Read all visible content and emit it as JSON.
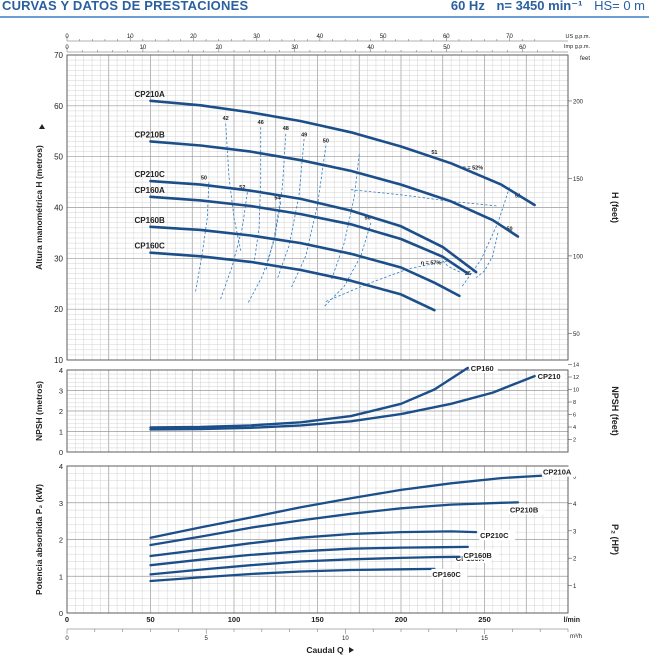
{
  "header": {
    "title": "CURVAS Y DATOS DE PRESTACIONES",
    "freq": "60 Hz",
    "speed": "n= 3450 min⁻¹",
    "hs": "HS= 0 m"
  },
  "colors": {
    "curve": "#1c4f8a",
    "label_blue": "#2a5fa0",
    "eff": "#2f7dc4",
    "grid_minor": "#c8c8c8",
    "grid_major": "#9a9a9a",
    "text": "#222222"
  },
  "flow_scales": {
    "us_gpm": {
      "label": "US g.p.m.",
      "ticks": [
        0,
        10,
        20,
        30,
        40,
        50,
        60,
        70
      ]
    },
    "imp_gpm": {
      "label": "Imp g.p.m.",
      "ticks": [
        0,
        10,
        20,
        30,
        40,
        50,
        60
      ]
    },
    "lmin": {
      "label": "l/min",
      "ticks": [
        0,
        50,
        100,
        150,
        200,
        250
      ]
    },
    "m3h": {
      "label": "m³/h",
      "ticks": [
        0,
        5,
        10,
        15
      ]
    },
    "xlabel": "Caudal Q"
  },
  "chart_data": [
    {
      "type": "line",
      "id": "head",
      "ylabel": "Altura manométrica H (metros)",
      "ylabel_right": "H (feet)",
      "right_unit": "feet",
      "xlim": [
        0,
        300
      ],
      "ylim": [
        10,
        70
      ],
      "yticks": [
        10,
        20,
        30,
        40,
        50,
        60,
        70
      ],
      "right_ticks": [
        50,
        100,
        150,
        200
      ],
      "series": [
        {
          "name": "CP210A",
          "x": [
            50,
            80,
            110,
            140,
            170,
            200,
            230,
            260,
            280
          ],
          "y": [
            61,
            60.1,
            58.7,
            57,
            54.8,
            52,
            48.7,
            44.5,
            40.5
          ]
        },
        {
          "name": "CP210B",
          "x": [
            50,
            80,
            110,
            140,
            170,
            200,
            230,
            255,
            270
          ],
          "y": [
            53,
            52.2,
            51,
            49.3,
            47.2,
            44.5,
            41.2,
            37.5,
            34.3
          ]
        },
        {
          "name": "CP210C",
          "x": [
            50,
            80,
            110,
            140,
            170,
            200,
            225,
            245
          ],
          "y": [
            45.2,
            44.5,
            43.3,
            41.7,
            39.4,
            36.3,
            32.2,
            27.3
          ]
        },
        {
          "name": "CP160A",
          "x": [
            50,
            80,
            110,
            140,
            170,
            200,
            225,
            240
          ],
          "y": [
            42.1,
            41.4,
            40.3,
            38.7,
            36.7,
            33.8,
            30.3,
            27
          ]
        },
        {
          "name": "CP160B",
          "x": [
            50,
            80,
            110,
            140,
            170,
            200,
            220,
            235
          ],
          "y": [
            36.2,
            35.6,
            34.5,
            33,
            30.9,
            28.2,
            25.2,
            22.6
          ]
        },
        {
          "name": "CP160C",
          "x": [
            50,
            80,
            110,
            140,
            170,
            200,
            220
          ],
          "y": [
            31.1,
            30.4,
            29.3,
            27.7,
            25.6,
            22.9,
            19.8
          ]
        }
      ],
      "efficiency": {
        "labels": [
          "42",
          "46",
          "48",
          "49",
          "50",
          "51",
          "η = 52%",
          "51",
          "50",
          "50",
          "52",
          "54",
          "56",
          "η = 57%",
          "56"
        ],
        "curves": [
          {
            "name": "42",
            "x": [
              95,
              97,
              100,
              104
            ],
            "y": [
              56.5,
              46,
              38,
              31.5
            ]
          },
          {
            "name": "46",
            "x": [
              116,
              116,
              115,
              112
            ],
            "y": [
              55.8,
              45,
              36,
              29
            ]
          },
          {
            "name": "48",
            "x": [
              131,
              129,
              124,
              119
            ],
            "y": [
              54.5,
              44,
              34,
              27.5
            ]
          },
          {
            "name": "49",
            "x": [
              142,
              139,
              133,
              126
            ],
            "y": [
              53.5,
              42.5,
              32.5,
              26
            ]
          },
          {
            "name": "50",
            "x": [
              155,
              150,
              143,
              134
            ],
            "y": [
              52.2,
              40.5,
              30.5,
              24
            ]
          },
          {
            "name": "51",
            "x": [
              265,
              258,
              248,
              236
            ],
            "y": [
              44,
              37,
              29.8,
              24.2
            ]
          },
          {
            "name": "51",
            "x": [
              175,
              172,
              166,
              158
            ],
            "y": [
              50.5,
              42,
              33,
              25.5
            ]
          },
          {
            "name": "50",
            "x": [
              258,
              255,
              250,
              245
            ],
            "y": [
              35,
              30.5,
              27.5,
              26.2
            ]
          },
          {
            "name": "50",
            "x": [
              85,
              84,
              81,
              77
            ],
            "y": [
              45,
              38,
              31,
              23.5
            ]
          },
          {
            "name": "52",
            "x": [
              108,
              105,
              99,
              92
            ],
            "y": [
              43,
              36,
              28.5,
              22
            ]
          },
          {
            "name": "54",
            "x": [
              128,
              124,
              117,
              108
            ],
            "y": [
              41,
              33.5,
              26.5,
              21
            ]
          },
          {
            "name": "56",
            "x": [
              182,
              176,
              166,
              154
            ],
            "y": [
              37,
              30.5,
              24.5,
              20.5
            ]
          },
          {
            "name": "57",
            "x": [
              155,
              180,
              205,
              228
            ],
            "y": [
              21.5,
              25,
              28,
              29.5
            ]
          },
          {
            "name": "52",
            "x": [
              170,
              200,
              230,
              258
            ],
            "y": [
              43.5,
              42.5,
              41.2,
              40.3
            ]
          },
          {
            "name": "56",
            "x": [
              225,
              228,
              232,
              236
            ],
            "y": [
              29.5,
              28.5,
              27.8,
              27.2
            ]
          }
        ]
      }
    },
    {
      "type": "line",
      "id": "npsh",
      "ylabel": "NPSH (metros)",
      "ylabel_right": "NPSH (feet)",
      "xlim": [
        0,
        300
      ],
      "ylim": [
        0,
        4
      ],
      "yticks": [
        0,
        1,
        2,
        3,
        4
      ],
      "right_ticks": [
        2,
        4,
        6,
        8,
        10,
        12,
        14
      ],
      "series": [
        {
          "name": "CP160",
          "x": [
            50,
            80,
            110,
            140,
            170,
            200,
            220,
            240
          ],
          "y": [
            1.2,
            1.22,
            1.3,
            1.45,
            1.75,
            2.35,
            3.05,
            4.1
          ]
        },
        {
          "name": "CP210",
          "x": [
            50,
            80,
            110,
            140,
            170,
            200,
            230,
            255,
            280
          ],
          "y": [
            1.1,
            1.12,
            1.18,
            1.3,
            1.5,
            1.85,
            2.35,
            2.9,
            3.7
          ]
        }
      ]
    },
    {
      "type": "line",
      "id": "power",
      "ylabel": "Potencia absorbida P₂ (kW)",
      "ylabel_right": "P₂ (HP)",
      "xlim": [
        0,
        300
      ],
      "ylim": [
        0,
        4
      ],
      "yticks": [
        0,
        1,
        2,
        3,
        4
      ],
      "right_ticks": [
        1,
        2,
        3,
        4,
        5
      ],
      "series": [
        {
          "name": "CP210A",
          "x": [
            50,
            80,
            110,
            140,
            170,
            200,
            230,
            260,
            285
          ],
          "y": [
            2.05,
            2.33,
            2.6,
            2.88,
            3.12,
            3.35,
            3.53,
            3.67,
            3.74
          ]
        },
        {
          "name": "CP210B",
          "x": [
            50,
            80,
            110,
            140,
            170,
            200,
            230,
            260,
            270
          ],
          "y": [
            1.85,
            2.08,
            2.32,
            2.52,
            2.7,
            2.85,
            2.95,
            3.0,
            3.01
          ]
        },
        {
          "name": "CP210C",
          "x": [
            50,
            80,
            110,
            140,
            170,
            200,
            230,
            245
          ],
          "y": [
            1.55,
            1.72,
            1.9,
            2.05,
            2.15,
            2.2,
            2.22,
            2.2
          ]
        },
        {
          "name": "CP160A",
          "x": [
            50,
            80,
            110,
            140,
            170,
            200,
            225,
            240
          ],
          "y": [
            1.3,
            1.45,
            1.58,
            1.68,
            1.75,
            1.78,
            1.79,
            1.8
          ]
        },
        {
          "name": "CP160B",
          "x": [
            50,
            80,
            110,
            140,
            170,
            200,
            220,
            235
          ],
          "y": [
            1.05,
            1.18,
            1.3,
            1.4,
            1.46,
            1.5,
            1.52,
            1.53
          ]
        },
        {
          "name": "CP160C",
          "x": [
            50,
            80,
            110,
            140,
            170,
            200,
            220
          ],
          "y": [
            0.87,
            0.97,
            1.06,
            1.13,
            1.17,
            1.19,
            1.2
          ]
        }
      ]
    }
  ]
}
